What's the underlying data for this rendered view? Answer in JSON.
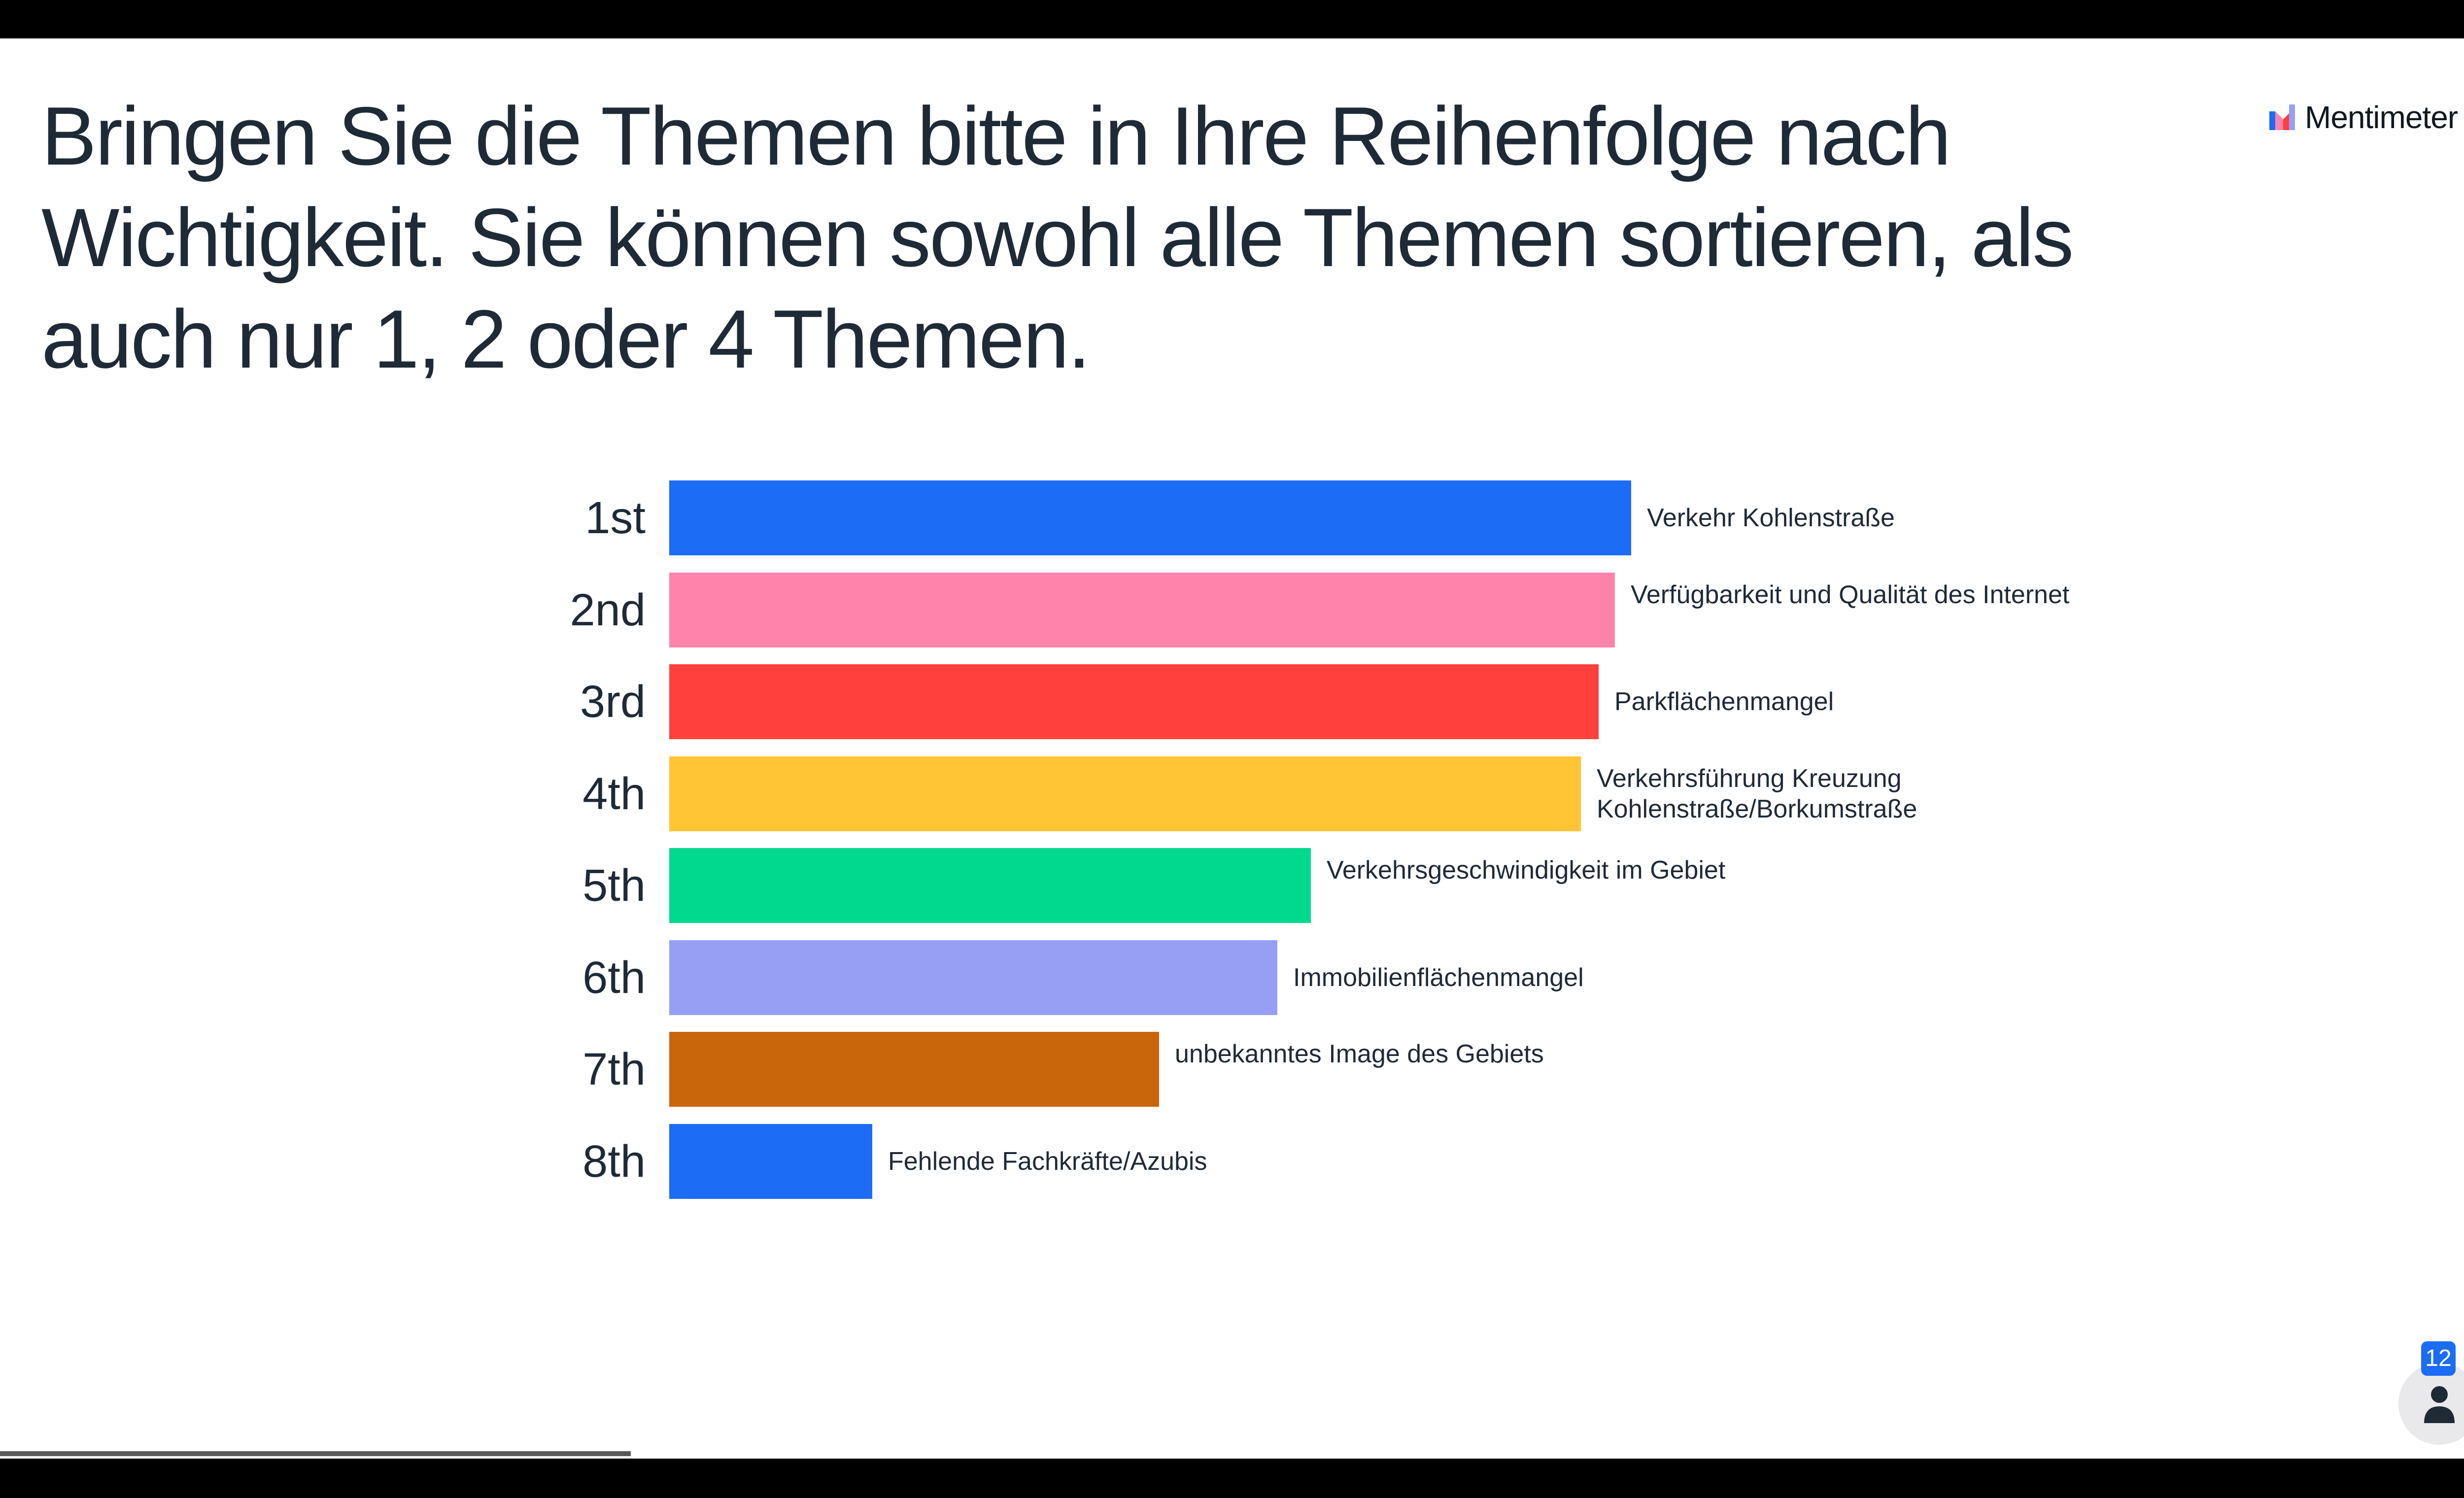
{
  "brand": {
    "name": "Mentimeter"
  },
  "participant_count": "12",
  "progress_fraction": 0.25,
  "colors": {
    "blue": "#1c6cf6",
    "pink": "#ff84ab",
    "red": "#ff403c",
    "yellow": "#ffc534",
    "green": "#00d98e",
    "lavender": "#979ff4",
    "orange": "#c9650a"
  },
  "chart_data": {
    "type": "bar",
    "orientation": "horizontal",
    "title": "Bringen Sie die Themen bitte in Ihre Reihenfolge nach Wichtigkeit. Sie können sowohl alle Themen sortieren, als auch nur 1, 2 oder 4 Themen.",
    "xlim": [
      0,
      100
    ],
    "grid": false,
    "categories": [
      "1st",
      "2nd",
      "3rd",
      "4th",
      "5th",
      "6th",
      "7th",
      "8th"
    ],
    "items": [
      {
        "rank": "1st",
        "label": "Verkehr Kohlenstraße",
        "value": 100,
        "color": "#1c6cf6"
      },
      {
        "rank": "2nd",
        "label": "Verfügbarkeit und Qualität des Internet",
        "value": 98.3,
        "color": "#ff84ab"
      },
      {
        "rank": "3rd",
        "label": "Parkflächenmangel",
        "value": 96.6,
        "color": "#ff403c"
      },
      {
        "rank": "4th",
        "label": "Verkehrsführung Kreuzung Kohlenstraße/Borkumstraße",
        "value": 94.8,
        "color": "#ffc534"
      },
      {
        "rank": "5th",
        "label": "Verkehrsgeschwindigkeit im Gebiet",
        "value": 66.7,
        "color": "#00d98e"
      },
      {
        "rank": "6th",
        "label": "Immobilienflächenmangel",
        "value": 63.2,
        "color": "#979ff4"
      },
      {
        "rank": "7th",
        "label": "unbekanntes Image des Gebiets",
        "value": 50.9,
        "color": "#c9650a"
      },
      {
        "rank": "8th",
        "label": "Fehlende Fachkräfte/Azubis",
        "value": 21.1,
        "color": "#1c6cf6"
      }
    ]
  }
}
